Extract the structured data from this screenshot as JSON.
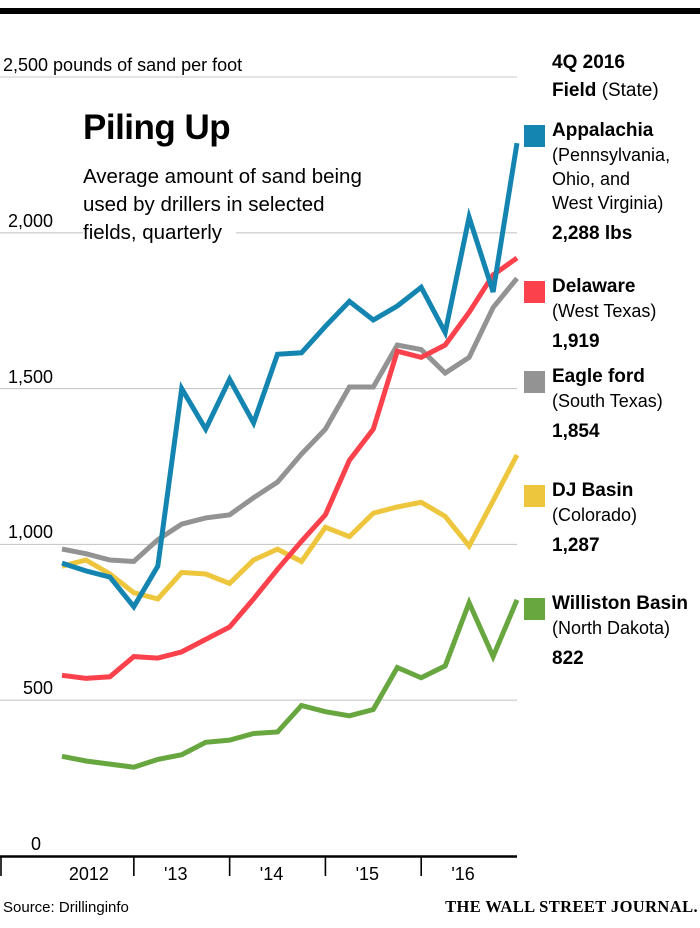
{
  "title": "Piling Up",
  "subtitle_lines": [
    "Average amount of sand being",
    "used by drillers in selected",
    "fields, quarterly"
  ],
  "legend": {
    "period": "4Q 2016",
    "field_label": "Field",
    "state_label": "(State)",
    "entries": [
      {
        "name": "Appalachia",
        "state_lines": [
          "(Pennsylvania,",
          "Ohio, and",
          "West Virginia)"
        ],
        "value": "2,288 lbs",
        "color": "#1485b0"
      },
      {
        "name": "Delaware",
        "state_lines": [
          "(West Texas)"
        ],
        "value": "1,919",
        "color": "#fb424c"
      },
      {
        "name": "Eagle ford",
        "state_lines": [
          "(South Texas)"
        ],
        "value": "1,854",
        "color": "#939393"
      },
      {
        "name": "DJ Basin",
        "state_lines": [
          "(Colorado)"
        ],
        "value": "1,287",
        "color": "#edc63e"
      },
      {
        "name": "Williston Basin",
        "state_lines": [
          "(North Dakota)"
        ],
        "value": "822",
        "color": "#68a73f"
      }
    ]
  },
  "footer": {
    "source": "Source: Drillinginfo",
    "brand": "THE WALL STREET JOURNAL."
  },
  "chart_data": {
    "type": "line",
    "title": "Piling Up",
    "subtitle": "Average amount of sand being used by drillers in selected fields, quarterly",
    "unit_label": "2,500 pounds of sand per foot",
    "ylabel": "pounds of sand per foot",
    "ylim": [
      0,
      2500
    ],
    "grid": true,
    "legend_position": "right",
    "y_ticks": [
      0,
      500,
      1000,
      1500,
      2000,
      2500
    ],
    "y_tick_labels": [
      "0",
      "500",
      "1,000",
      "1,500",
      "2,000",
      "2,500 pounds of sand per foot"
    ],
    "x_tick_labels": [
      "2012",
      "'13",
      "'14",
      "'15",
      "'16"
    ],
    "x": [
      "2012 Q1",
      "2012 Q2",
      "2012 Q3",
      "2012 Q4",
      "2013 Q1",
      "2013 Q2",
      "2013 Q3",
      "2013 Q4",
      "2014 Q1",
      "2014 Q2",
      "2014 Q3",
      "2014 Q4",
      "2015 Q1",
      "2015 Q2",
      "2015 Q3",
      "2015 Q4",
      "2016 Q1",
      "2016 Q2",
      "2016 Q3",
      "2016 Q4"
    ],
    "series": [
      {
        "name": "Appalachia",
        "color": "#1485b0",
        "final_value": 2288,
        "values": [
          940,
          915,
          895,
          800,
          930,
          1500,
          1370,
          1530,
          1390,
          1610,
          1615,
          1700,
          1780,
          1720,
          1765,
          1825,
          1680,
          2050,
          1810,
          2288
        ]
      },
      {
        "name": "Delaware",
        "color": "#fb424c",
        "final_value": 1919,
        "values": [
          580,
          570,
          575,
          640,
          635,
          655,
          695,
          735,
          825,
          920,
          1010,
          1095,
          1270,
          1370,
          1620,
          1600,
          1640,
          1745,
          1865,
          1919
        ]
      },
      {
        "name": "Eagle ford",
        "color": "#939393",
        "final_value": 1854,
        "values": [
          985,
          970,
          950,
          945,
          1015,
          1065,
          1085,
          1095,
          1150,
          1200,
          1290,
          1370,
          1505,
          1505,
          1640,
          1625,
          1550,
          1600,
          1760,
          1854
        ]
      },
      {
        "name": "DJ Basin",
        "color": "#edc63e",
        "final_value": 1287,
        "values": [
          930,
          950,
          905,
          845,
          825,
          910,
          905,
          875,
          950,
          985,
          945,
          1055,
          1025,
          1100,
          1120,
          1135,
          1090,
          995,
          1140,
          1287
        ]
      },
      {
        "name": "Williston Basin",
        "color": "#68a73f",
        "final_value": 822,
        "values": [
          320,
          305,
          295,
          285,
          310,
          325,
          365,
          372,
          393,
          398,
          483,
          463,
          450,
          470,
          605,
          572,
          610,
          813,
          640,
          822
        ]
      }
    ],
    "style": {
      "gridline_color": "#c9c9c9",
      "axis_color": "#000000",
      "line_width": 5
    }
  }
}
